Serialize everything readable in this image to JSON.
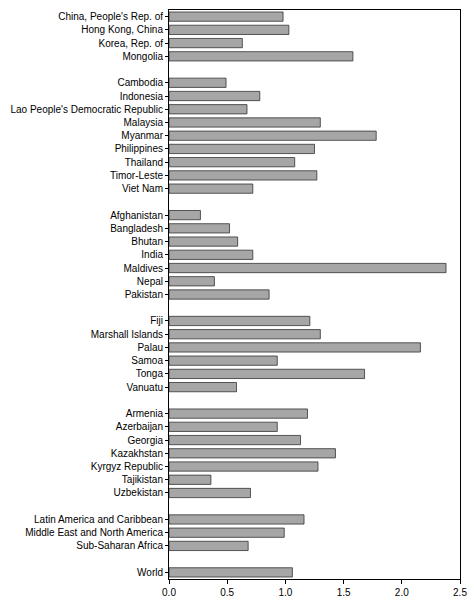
{
  "chart_data": {
    "type": "bar",
    "orientation": "horizontal",
    "categories": [
      "China, People's Rep. of",
      "Hong Kong, China",
      "Korea, Rep. of",
      "Mongolia",
      null,
      "Cambodia",
      "Indonesia",
      "Lao People's Democratic Republic",
      "Malaysia",
      "Myanmar",
      "Philippines",
      "Thailand",
      "Timor-Leste",
      "Viet Nam",
      null,
      "Afghanistan",
      "Bangladesh",
      "Bhutan",
      "India",
      "Maldives",
      "Nepal",
      "Pakistan",
      null,
      "Fiji",
      "Marshall Islands",
      "Palau",
      "Samoa",
      "Tonga",
      "Vanuatu",
      null,
      "Armenia",
      "Azerbaijan",
      "Georgia",
      "Kazakhstan",
      "Kyrgyz Republic",
      "Tajikistan",
      "Uzbekistan",
      null,
      "Latin America and Caribbean",
      "Middle East and North America",
      "Sub-Saharan Africa",
      null,
      "World"
    ],
    "values": [
      0.98,
      1.03,
      0.63,
      1.58,
      null,
      0.49,
      0.78,
      0.67,
      1.3,
      1.78,
      1.25,
      1.08,
      1.27,
      0.72,
      null,
      0.27,
      0.52,
      0.59,
      0.72,
      2.38,
      0.39,
      0.86,
      null,
      1.21,
      1.3,
      2.16,
      0.93,
      1.68,
      0.58,
      null,
      1.19,
      0.93,
      1.13,
      1.43,
      1.28,
      0.36,
      0.7,
      null,
      1.16,
      0.99,
      0.68,
      null,
      1.06
    ],
    "color": "#a6a6a6",
    "xlim": [
      0,
      2.5
    ],
    "xticks": [
      {
        "value": 0,
        "label": "0.0"
      },
      0.5,
      {
        "value": 1,
        "label": "1.0"
      },
      1.5,
      {
        "value": 2,
        "label": "2.0"
      },
      2.5
    ],
    "grid": false
  }
}
